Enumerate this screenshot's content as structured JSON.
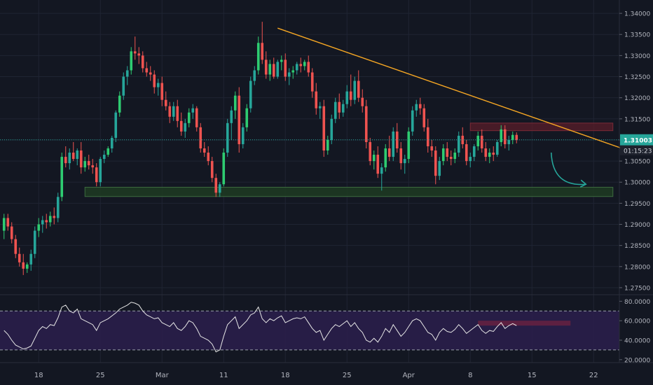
{
  "chart_data": {
    "type": "candlestick",
    "symbol_note": "",
    "price_axis": {
      "ticks": [
        "1.34000",
        "1.33500",
        "1.33000",
        "1.32500",
        "1.32000",
        "1.31500",
        "1.31000",
        "1.30500",
        "1.30000",
        "1.29500",
        "1.29000",
        "1.28500",
        "1.28000",
        "1.27500"
      ],
      "tick_values": [
        1.34,
        1.335,
        1.33,
        1.325,
        1.32,
        1.315,
        1.31,
        1.305,
        1.3,
        1.295,
        1.29,
        1.285,
        1.28,
        1.275
      ],
      "range": [
        1.2735,
        1.3425
      ]
    },
    "current_price_label": "1.31003",
    "countdown_label": "01:15:23",
    "current_price": 1.31003,
    "time_axis": {
      "labels": [
        "18",
        "25",
        "Mar",
        "11",
        "18",
        "25",
        "Apr",
        "8",
        "15",
        "22"
      ],
      "label_bar_index": [
        9,
        25,
        41,
        57,
        73,
        89,
        105,
        121,
        137,
        153
      ],
      "total_bar_slots": 165
    },
    "candles_ohlc": [
      [
        1.2885,
        1.2925,
        1.2865,
        1.2915
      ],
      [
        1.2915,
        1.2925,
        1.2885,
        1.2895
      ],
      [
        1.2895,
        1.2905,
        1.2855,
        1.2865
      ],
      [
        1.2865,
        1.2875,
        1.282,
        1.283
      ],
      [
        1.283,
        1.2845,
        1.28,
        1.281
      ],
      [
        1.281,
        1.283,
        1.278,
        1.2795
      ],
      [
        1.2795,
        1.281,
        1.2785,
        1.2805
      ],
      [
        1.2805,
        1.284,
        1.279,
        1.283
      ],
      [
        1.283,
        1.2895,
        1.282,
        1.2885
      ],
      [
        1.2885,
        1.2915,
        1.287,
        1.29
      ],
      [
        1.29,
        1.292,
        1.288,
        1.291
      ],
      [
        1.291,
        1.2925,
        1.289,
        1.2905
      ],
      [
        1.2905,
        1.293,
        1.2895,
        1.292
      ],
      [
        1.292,
        1.294,
        1.29,
        1.2915
      ],
      [
        1.2915,
        1.2975,
        1.2905,
        1.2965
      ],
      [
        1.2965,
        1.307,
        1.2955,
        1.306
      ],
      [
        1.306,
        1.3085,
        1.3035,
        1.3045
      ],
      [
        1.3045,
        1.308,
        1.303,
        1.307
      ],
      [
        1.307,
        1.3095,
        1.305,
        1.3055
      ],
      [
        1.3055,
        1.308,
        1.304,
        1.3075
      ],
      [
        1.3075,
        1.3095,
        1.302,
        1.3035
      ],
      [
        1.3035,
        1.306,
        1.3025,
        1.305
      ],
      [
        1.305,
        1.3065,
        1.303,
        1.304
      ],
      [
        1.304,
        1.3055,
        1.302,
        1.3035
      ],
      [
        1.3035,
        1.3045,
        1.299,
        1.3
      ],
      [
        1.3,
        1.306,
        1.299,
        1.3055
      ],
      [
        1.3055,
        1.3075,
        1.3045,
        1.3065
      ],
      [
        1.3065,
        1.3085,
        1.306,
        1.308
      ],
      [
        1.308,
        1.311,
        1.307,
        1.3105
      ],
      [
        1.3105,
        1.317,
        1.3095,
        1.3165
      ],
      [
        1.3165,
        1.3215,
        1.3155,
        1.3205
      ],
      [
        1.3205,
        1.326,
        1.3195,
        1.325
      ],
      [
        1.325,
        1.3275,
        1.323,
        1.3265
      ],
      [
        1.3265,
        1.332,
        1.3255,
        1.331
      ],
      [
        1.331,
        1.3345,
        1.329,
        1.3305
      ],
      [
        1.3305,
        1.332,
        1.328,
        1.33
      ],
      [
        1.33,
        1.331,
        1.326,
        1.327
      ],
      [
        1.327,
        1.3285,
        1.325,
        1.326
      ],
      [
        1.326,
        1.3275,
        1.324,
        1.3255
      ],
      [
        1.3255,
        1.3265,
        1.321,
        1.3225
      ],
      [
        1.3225,
        1.3245,
        1.3205,
        1.3235
      ],
      [
        1.3235,
        1.325,
        1.318,
        1.3195
      ],
      [
        1.3195,
        1.3215,
        1.317,
        1.318
      ],
      [
        1.318,
        1.319,
        1.314,
        1.3155
      ],
      [
        1.3155,
        1.319,
        1.3145,
        1.318
      ],
      [
        1.318,
        1.3195,
        1.313,
        1.3145
      ],
      [
        1.3145,
        1.3165,
        1.311,
        1.312
      ],
      [
        1.312,
        1.315,
        1.3105,
        1.314
      ],
      [
        1.314,
        1.3175,
        1.313,
        1.3165
      ],
      [
        1.3165,
        1.3185,
        1.315,
        1.3175
      ],
      [
        1.3175,
        1.318,
        1.312,
        1.313
      ],
      [
        1.313,
        1.314,
        1.307,
        1.308
      ],
      [
        1.308,
        1.3095,
        1.306,
        1.307
      ],
      [
        1.307,
        1.3085,
        1.304,
        1.305
      ],
      [
        1.305,
        1.306,
        1.3,
        1.301
      ],
      [
        1.301,
        1.302,
        1.2965,
        1.2975
      ],
      [
        1.2975,
        1.3,
        1.2965,
        1.2995
      ],
      [
        1.2995,
        1.308,
        1.299,
        1.307
      ],
      [
        1.307,
        1.315,
        1.306,
        1.314
      ],
      [
        1.314,
        1.318,
        1.31,
        1.317
      ],
      [
        1.317,
        1.3215,
        1.315,
        1.3205
      ],
      [
        1.3205,
        1.3225,
        1.307,
        1.309
      ],
      [
        1.309,
        1.314,
        1.308,
        1.313
      ],
      [
        1.313,
        1.3185,
        1.312,
        1.3175
      ],
      [
        1.3175,
        1.325,
        1.3165,
        1.324
      ],
      [
        1.324,
        1.3275,
        1.323,
        1.3265
      ],
      [
        1.3265,
        1.3345,
        1.3255,
        1.333
      ],
      [
        1.333,
        1.338,
        1.328,
        1.329
      ],
      [
        1.329,
        1.331,
        1.3245,
        1.3255
      ],
      [
        1.3255,
        1.329,
        1.324,
        1.328
      ],
      [
        1.328,
        1.3295,
        1.3245,
        1.325
      ],
      [
        1.325,
        1.329,
        1.3245,
        1.3285
      ],
      [
        1.3285,
        1.33,
        1.3265,
        1.329
      ],
      [
        1.329,
        1.3305,
        1.324,
        1.325
      ],
      [
        1.325,
        1.327,
        1.323,
        1.326
      ],
      [
        1.326,
        1.3275,
        1.3245,
        1.3265
      ],
      [
        1.3265,
        1.3285,
        1.3255,
        1.328
      ],
      [
        1.328,
        1.3295,
        1.326,
        1.3275
      ],
      [
        1.3275,
        1.329,
        1.3265,
        1.3285
      ],
      [
        1.3285,
        1.33,
        1.325,
        1.326
      ],
      [
        1.326,
        1.327,
        1.32,
        1.3215
      ],
      [
        1.3215,
        1.3235,
        1.316,
        1.3175
      ],
      [
        1.3175,
        1.319,
        1.315,
        1.318
      ],
      [
        1.318,
        1.3195,
        1.306,
        1.3075
      ],
      [
        1.3075,
        1.311,
        1.3065,
        1.31
      ],
      [
        1.31,
        1.316,
        1.309,
        1.315
      ],
      [
        1.315,
        1.32,
        1.314,
        1.319
      ],
      [
        1.319,
        1.321,
        1.315,
        1.3165
      ],
      [
        1.3165,
        1.3195,
        1.3155,
        1.3185
      ],
      [
        1.3185,
        1.323,
        1.3175,
        1.3215
      ],
      [
        1.3215,
        1.3255,
        1.318,
        1.3195
      ],
      [
        1.3195,
        1.325,
        1.3185,
        1.324
      ],
      [
        1.324,
        1.3265,
        1.319,
        1.32
      ],
      [
        1.32,
        1.322,
        1.3165,
        1.318
      ],
      [
        1.318,
        1.3195,
        1.308,
        1.3095
      ],
      [
        1.3095,
        1.3105,
        1.304,
        1.305
      ],
      [
        1.305,
        1.3075,
        1.303,
        1.3065
      ],
      [
        1.3065,
        1.3085,
        1.301,
        1.302
      ],
      [
        1.302,
        1.3045,
        1.298,
        1.3035
      ],
      [
        1.3035,
        1.309,
        1.3025,
        1.308
      ],
      [
        1.308,
        1.311,
        1.305,
        1.306
      ],
      [
        1.306,
        1.313,
        1.305,
        1.312
      ],
      [
        1.312,
        1.314,
        1.307,
        1.308
      ],
      [
        1.308,
        1.3095,
        1.303,
        1.3045
      ],
      [
        1.3045,
        1.3065,
        1.302,
        1.3055
      ],
      [
        1.3055,
        1.313,
        1.3045,
        1.312
      ],
      [
        1.312,
        1.318,
        1.311,
        1.317
      ],
      [
        1.317,
        1.3195,
        1.3155,
        1.3185
      ],
      [
        1.3185,
        1.32,
        1.316,
        1.3175
      ],
      [
        1.3175,
        1.3185,
        1.312,
        1.313
      ],
      [
        1.313,
        1.315,
        1.307,
        1.3085
      ],
      [
        1.3085,
        1.31,
        1.306,
        1.3075
      ],
      [
        1.3075,
        1.3085,
        1.2995,
        1.3015
      ],
      [
        1.3015,
        1.306,
        1.3005,
        1.305
      ],
      [
        1.305,
        1.309,
        1.304,
        1.308
      ],
      [
        1.308,
        1.3095,
        1.305,
        1.306
      ],
      [
        1.306,
        1.3075,
        1.304,
        1.3055
      ],
      [
        1.3055,
        1.308,
        1.3045,
        1.307
      ],
      [
        1.307,
        1.312,
        1.306,
        1.311
      ],
      [
        1.311,
        1.313,
        1.308,
        1.309
      ],
      [
        1.309,
        1.31,
        1.304,
        1.305
      ],
      [
        1.305,
        1.307,
        1.3035,
        1.306
      ],
      [
        1.306,
        1.309,
        1.305,
        1.3085
      ],
      [
        1.3085,
        1.312,
        1.3075,
        1.311
      ],
      [
        1.311,
        1.3125,
        1.307,
        1.308
      ],
      [
        1.308,
        1.3095,
        1.305,
        1.306
      ],
      [
        1.306,
        1.308,
        1.3045,
        1.307
      ],
      [
        1.307,
        1.3085,
        1.305,
        1.3065
      ],
      [
        1.3065,
        1.31,
        1.306,
        1.3095
      ],
      [
        1.3095,
        1.3135,
        1.3085,
        1.3125
      ],
      [
        1.3125,
        1.3135,
        1.308,
        1.309
      ],
      [
        1.309,
        1.311,
        1.3075,
        1.31
      ],
      [
        1.31,
        1.312,
        1.309,
        1.3112
      ],
      [
        1.3112,
        1.3118,
        1.3092,
        1.31
      ]
    ],
    "rsi": {
      "axis_ticks": [
        "80.0000",
        "60.0000",
        "40.0000",
        "20.0000"
      ],
      "tick_values": [
        80,
        60,
        40,
        20
      ],
      "range": [
        17,
        86
      ],
      "overbought": 70,
      "oversold": 30,
      "values": [
        50,
        46,
        40,
        35,
        33,
        31,
        32,
        34,
        42,
        50,
        54,
        52,
        56,
        55,
        63,
        74,
        76,
        70,
        68,
        72,
        62,
        60,
        58,
        56,
        50,
        58,
        60,
        62,
        65,
        68,
        72,
        74,
        76,
        79,
        78,
        76,
        70,
        66,
        64,
        62,
        63,
        58,
        56,
        54,
        58,
        52,
        50,
        54,
        60,
        58,
        52,
        44,
        42,
        40,
        36,
        28,
        30,
        44,
        56,
        60,
        64,
        52,
        56,
        60,
        66,
        68,
        74,
        62,
        58,
        62,
        60,
        63,
        65,
        58,
        60,
        62,
        63,
        62,
        64,
        58,
        52,
        48,
        50,
        40,
        46,
        52,
        56,
        54,
        57,
        60,
        54,
        58,
        52,
        48,
        40,
        38,
        42,
        38,
        44,
        52,
        48,
        56,
        50,
        44,
        48,
        54,
        60,
        62,
        60,
        54,
        48,
        46,
        40,
        48,
        52,
        49,
        48,
        51,
        56,
        52,
        47,
        50,
        53,
        56,
        50,
        47,
        50,
        49,
        54,
        58,
        52,
        55,
        57,
        55
      ]
    },
    "annotations": {
      "resistance_zone": {
        "price_low": 1.3122,
        "price_high": 1.314,
        "bar_start": 121,
        "bar_end": 158
      },
      "support_zone": {
        "price_low": 1.2966,
        "price_high": 1.2988,
        "bar_start": 21,
        "bar_end": 158
      },
      "trendline": {
        "from": {
          "bar": 71,
          "price": 1.3365
        },
        "to": {
          "bar": 161,
          "price": 1.3078
        }
      },
      "projection_arrow": {
        "from": {
          "bar": 142,
          "price": 1.307
        },
        "to": {
          "bar": 147,
          "price": 1.2995
        }
      },
      "rsi_zone": {
        "rsi_low": 55,
        "rsi_high": 60,
        "bar_start": 123,
        "bar_end": 147
      }
    },
    "colors": {
      "background": "#131722",
      "up": "#26a69a",
      "up_bright": "#2ecc71",
      "down": "#ef5350",
      "trendline": "#f5a623",
      "price_line": "#26a69a",
      "resistance_fill": "#5a1e2a",
      "support_fill": "#1f3b22",
      "rsi_fill": "#2a1e4a",
      "rsi_line": "#e6e6e6",
      "axis_text": "#b2b5be"
    }
  }
}
